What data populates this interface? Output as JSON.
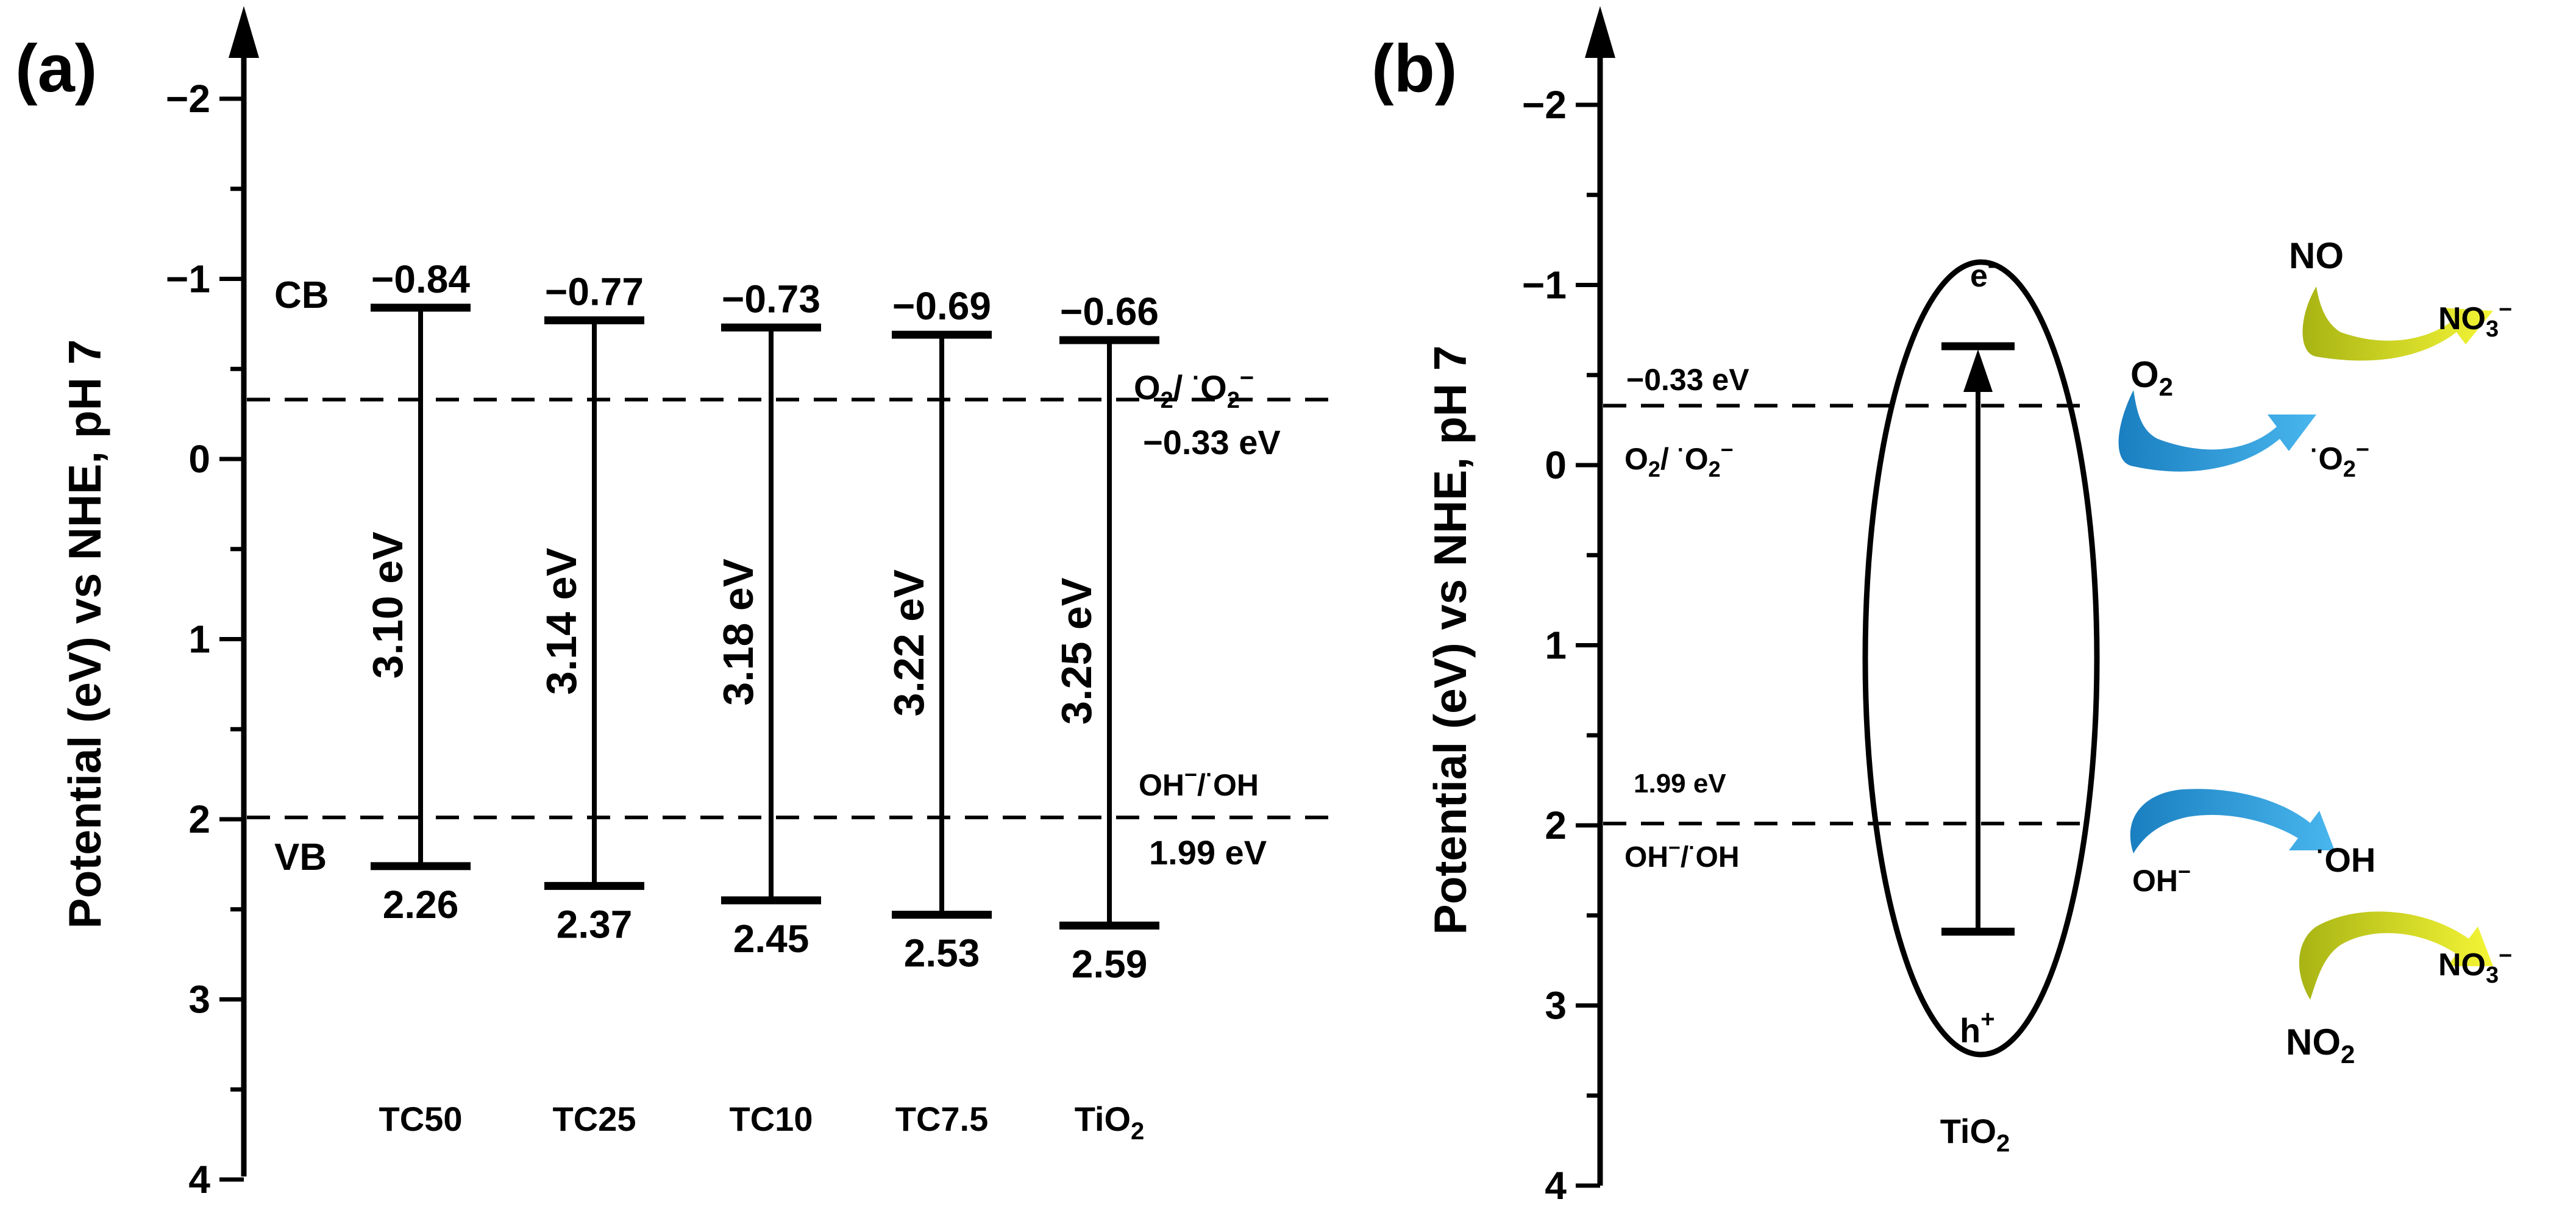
{
  "panel_a": {
    "label": "(a)",
    "y_axis": {
      "label": "Potential (eV) vs NHE, pH 7",
      "ticks": [
        -2,
        -1,
        0,
        1,
        2,
        3,
        4
      ],
      "tick_labels": [
        "−2",
        "−1",
        "0",
        "1",
        "2",
        "3",
        "4"
      ],
      "range": [
        -2,
        4
      ]
    },
    "cb_label": "CB",
    "vb_label": "VB",
    "samples": [
      {
        "name": "TC50",
        "name_main": "TC50",
        "name_sub": "",
        "cb": -0.84,
        "vb": 2.26,
        "cb_label": "−0.84",
        "vb_label": "2.26",
        "gap_label": "3.10 eV"
      },
      {
        "name": "TC25",
        "name_main": "TC25",
        "name_sub": "",
        "cb": -0.77,
        "vb": 2.37,
        "cb_label": "−0.77",
        "vb_label": "2.37",
        "gap_label": "3.14 eV"
      },
      {
        "name": "TC10",
        "name_main": "TC10",
        "name_sub": "",
        "cb": -0.73,
        "vb": 2.45,
        "cb_label": "−0.73",
        "vb_label": "2.45",
        "gap_label": "3.18 eV"
      },
      {
        "name": "TC7.5",
        "name_main": "TC7.5",
        "name_sub": "",
        "cb": -0.69,
        "vb": 2.53,
        "cb_label": "−0.69",
        "vb_label": "2.53",
        "gap_label": "3.22 eV"
      },
      {
        "name": "TiO2",
        "name_main": "TiO",
        "name_sub": "2",
        "cb": -0.66,
        "vb": 2.59,
        "cb_label": "−0.66",
        "vb_label": "2.59",
        "gap_label": "3.25 eV"
      }
    ],
    "ref_lines": [
      {
        "value": -0.33,
        "label": "−0.33 eV",
        "couple": "O2/·O2−"
      },
      {
        "value": 1.99,
        "label": "1.99 eV",
        "couple": "OH−/·OH"
      }
    ]
  },
  "panel_b": {
    "label": "(b)",
    "y_axis": {
      "label": "Potential (eV) vs NHE, pH 7",
      "tick_labels": [
        "−2",
        "−1",
        "0",
        "1",
        "2",
        "3",
        "4"
      ]
    },
    "cb": -0.66,
    "vb": 2.59,
    "electron_label": "e−",
    "hole_label": "h+",
    "material_label": "TiO2",
    "ref_lines": [
      {
        "value": -0.33,
        "label": "−0.33 eV",
        "couple": "O2/·O2−"
      },
      {
        "value": 1.99,
        "label": "1.99 eV",
        "couple": "OH−/·OH"
      }
    ],
    "species": {
      "o2": "O2",
      "superoxide": "·O2−",
      "no": "NO",
      "nitrate": "NO3−",
      "hydroxide": "OH−",
      "hydroxyl": "·OH",
      "no2": "NO2"
    },
    "colors": {
      "blue_arrow": "#2196d6",
      "yellow_arrow": "#e2ea1c"
    }
  }
}
